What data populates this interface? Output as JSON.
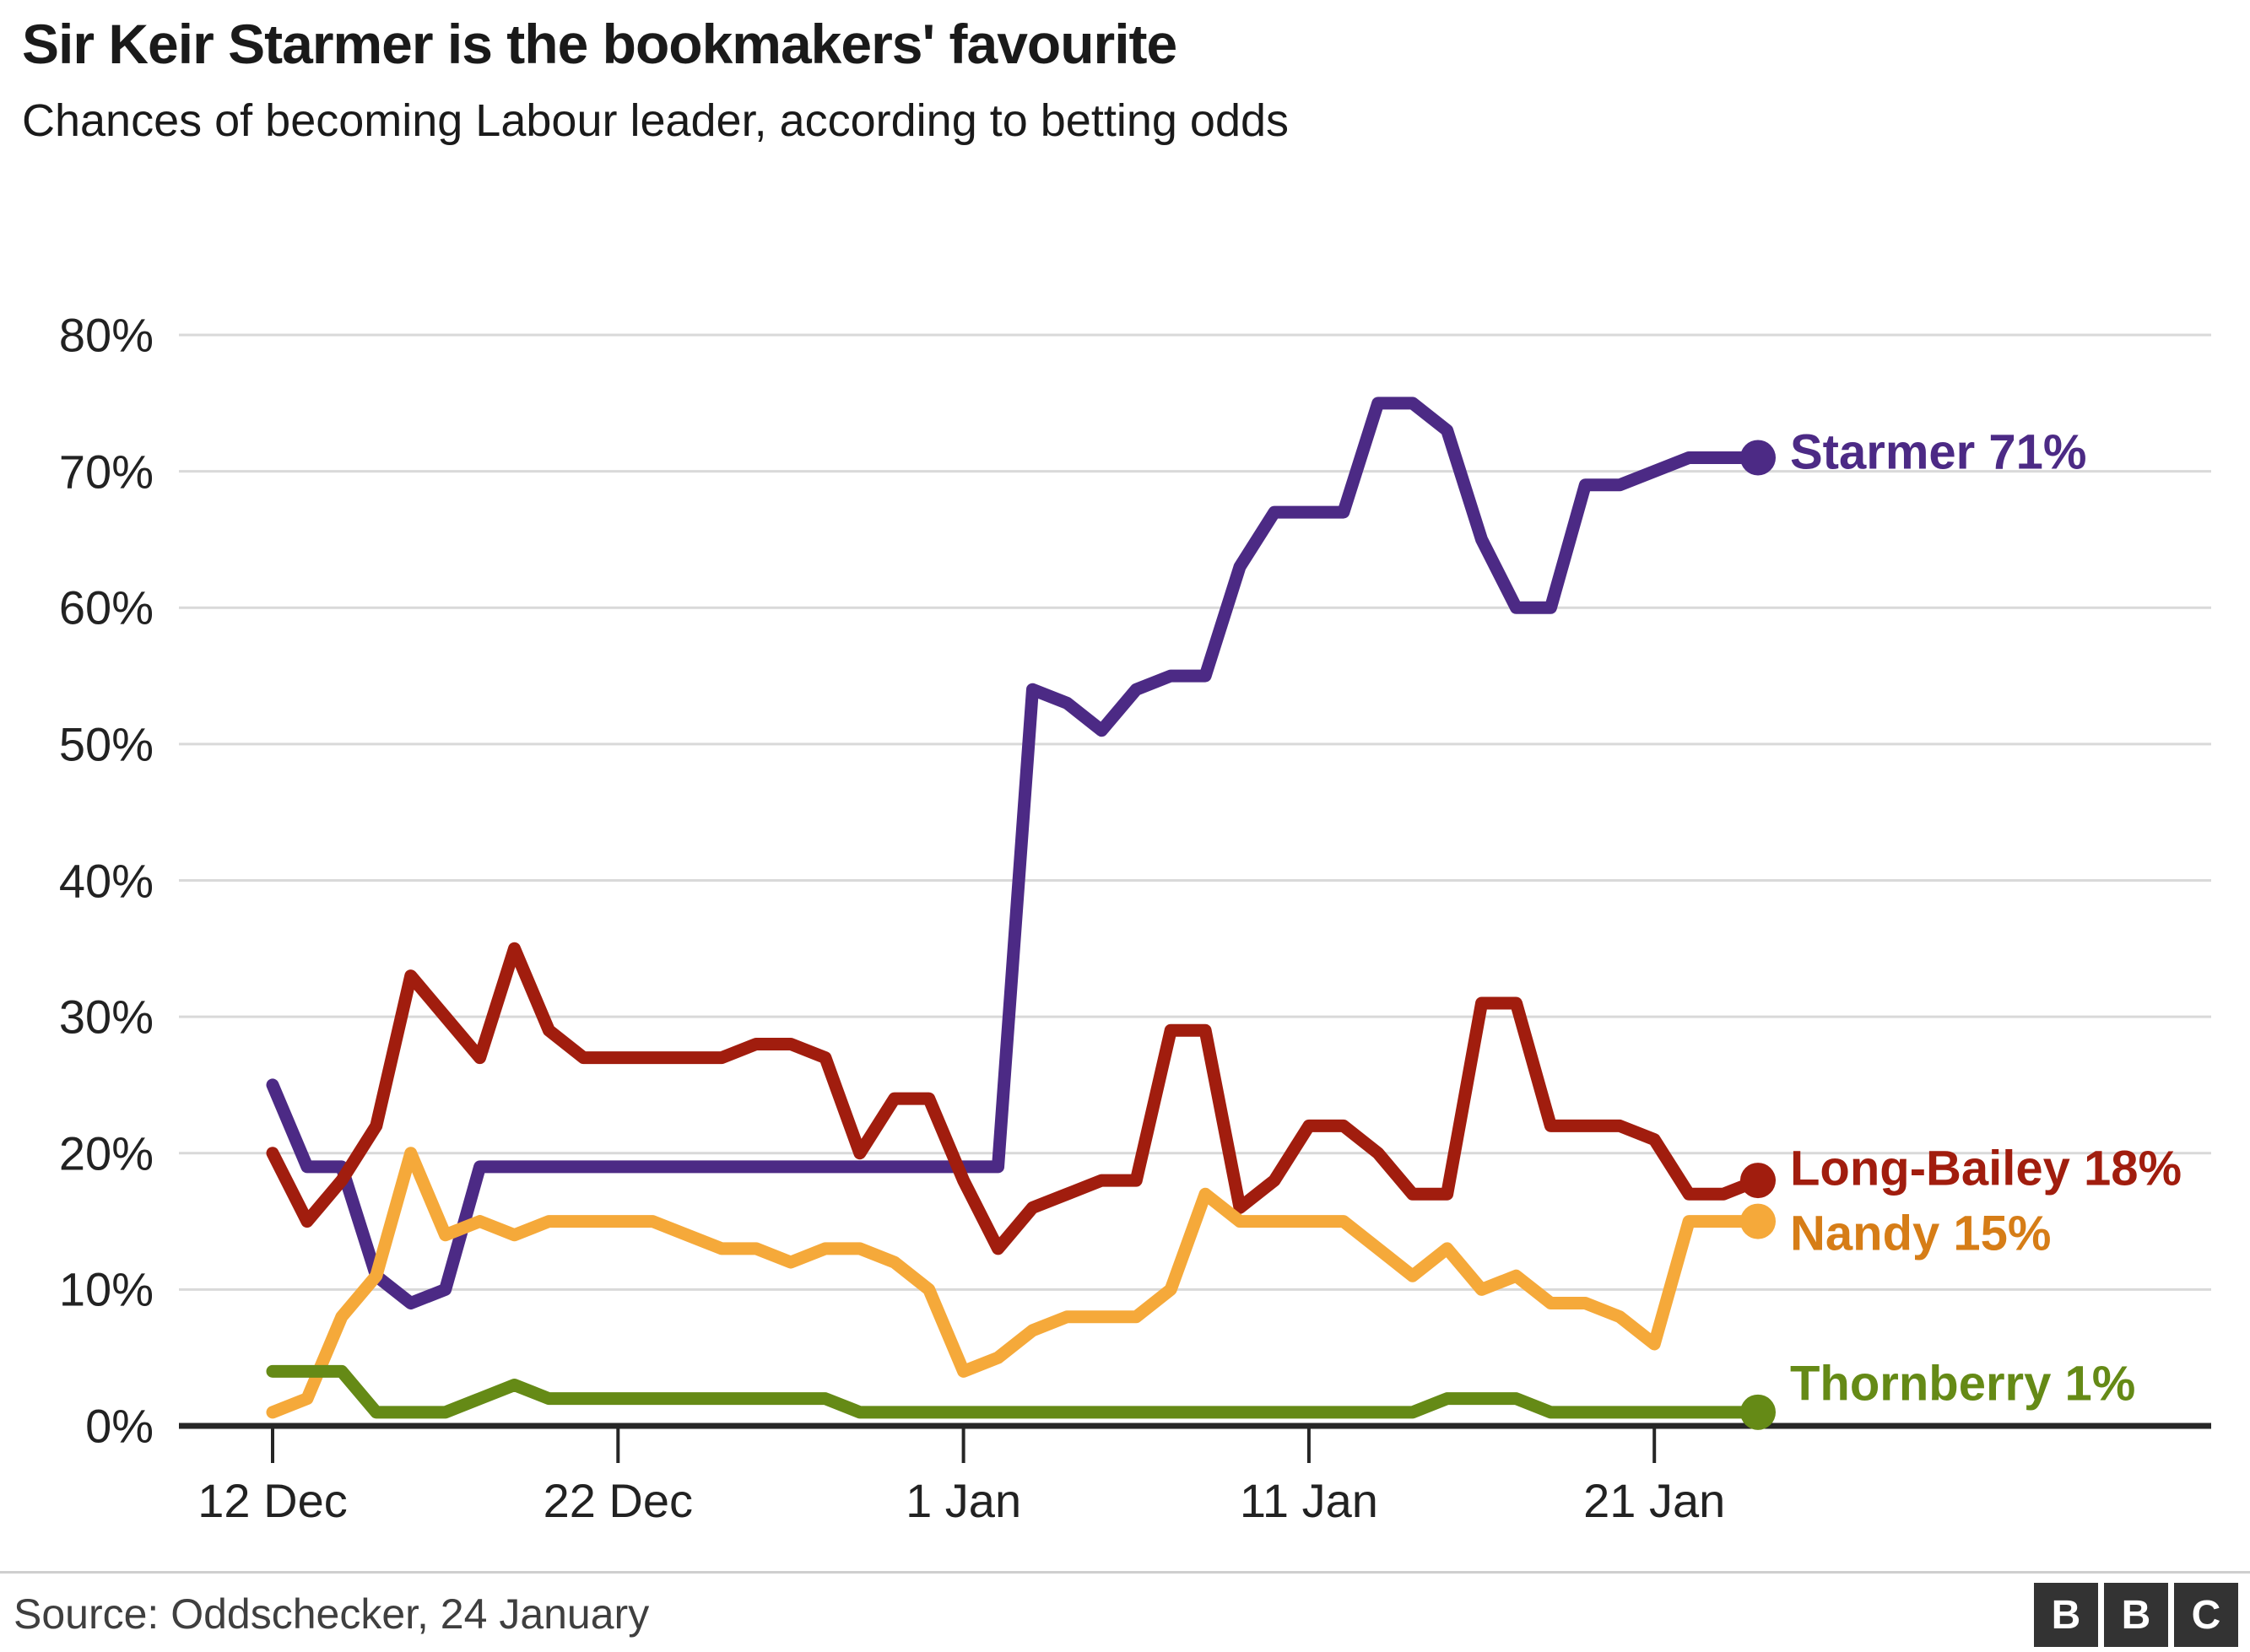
{
  "header": {
    "title": "Sir Keir Starmer is the bookmakers' favourite",
    "subtitle": "Chances of becoming Labour leader, according to betting odds"
  },
  "chart_data": {
    "type": "line",
    "title": "Sir Keir Starmer is the bookmakers' favourite",
    "subtitle": "Chances of becoming Labour leader, according to betting odds",
    "xlabel": "",
    "ylabel": "",
    "ylim": [
      0,
      80
    ],
    "grid": "horizontal",
    "grid_color": "#d9d9d9",
    "axis_color": "#262626",
    "legend_position": "right-end-labels",
    "categories": [
      "12 Dec",
      "13 Dec",
      "14 Dec",
      "15 Dec",
      "16 Dec",
      "17 Dec",
      "18 Dec",
      "19 Dec",
      "20 Dec",
      "21 Dec",
      "22 Dec",
      "23 Dec",
      "24 Dec",
      "25 Dec",
      "26 Dec",
      "27 Dec",
      "28 Dec",
      "29 Dec",
      "30 Dec",
      "31 Dec",
      "1 Jan",
      "2 Jan",
      "3 Jan",
      "4 Jan",
      "5 Jan",
      "6 Jan",
      "7 Jan",
      "8 Jan",
      "9 Jan",
      "10 Jan",
      "11 Jan",
      "12 Jan",
      "13 Jan",
      "14 Jan",
      "15 Jan",
      "16 Jan",
      "17 Jan",
      "18 Jan",
      "19 Jan",
      "20 Jan",
      "21 Jan",
      "22 Jan",
      "23 Jan",
      "24 Jan"
    ],
    "y_ticks": [
      {
        "value": 0,
        "label": "0%"
      },
      {
        "value": 10,
        "label": "10%"
      },
      {
        "value": 20,
        "label": "20%"
      },
      {
        "value": 30,
        "label": "30%"
      },
      {
        "value": 40,
        "label": "40%"
      },
      {
        "value": 50,
        "label": "50%"
      },
      {
        "value": 60,
        "label": "60%"
      },
      {
        "value": 70,
        "label": "70%"
      },
      {
        "value": 80,
        "label": "80%"
      }
    ],
    "x_tick_labels": [
      {
        "index": 0,
        "label": "12 Dec"
      },
      {
        "index": 10,
        "label": "22 Dec"
      },
      {
        "index": 20,
        "label": "1 Jan"
      },
      {
        "index": 30,
        "label": "11 Jan"
      },
      {
        "index": 40,
        "label": "21 Jan"
      }
    ],
    "series": [
      {
        "id": "starmer",
        "name": "Starmer",
        "label": "Starmer 71%",
        "final_value": "71%",
        "color": "#4C2A85",
        "label_color": "#4C2A85",
        "label_value": 71.4,
        "values": [
          25,
          19,
          19,
          11,
          9,
          10,
          19,
          19,
          19,
          19,
          19,
          19,
          19,
          19,
          19,
          19,
          19,
          19,
          19,
          19,
          19,
          19,
          54,
          53,
          51,
          54,
          55,
          55,
          63,
          67,
          67,
          67,
          75,
          75,
          73,
          65,
          60,
          60,
          69,
          69,
          70,
          71,
          71,
          71
        ]
      },
      {
        "id": "long-bailey",
        "name": "Long-Bailey",
        "label": "Long-Bailey 18%",
        "final_value": "18%",
        "color": "#A11D0E",
        "label_color": "#A11D0E",
        "label_value": 18.9,
        "values": [
          20,
          15,
          18,
          22,
          33,
          30,
          27,
          35,
          29,
          27,
          27,
          27,
          27,
          27,
          28,
          28,
          27,
          20,
          24,
          24,
          18,
          13,
          16,
          17,
          18,
          18,
          29,
          29,
          16,
          18,
          22,
          22,
          20,
          17,
          17,
          31,
          31,
          22,
          22,
          22,
          21,
          17,
          17,
          18
        ]
      },
      {
        "id": "nandy",
        "name": "Nandy",
        "label": "Nandy 15%",
        "final_value": "15%",
        "color": "#F5A93A",
        "label_color": "#D67D17",
        "label_value": 14.1,
        "values": [
          1,
          2,
          8,
          11,
          20,
          14,
          15,
          14,
          15,
          15,
          15,
          15,
          14,
          13,
          13,
          12,
          13,
          13,
          12,
          10,
          4,
          5,
          7,
          8,
          8,
          8,
          10,
          17,
          15,
          15,
          15,
          15,
          13,
          11,
          13,
          10,
          11,
          9,
          9,
          8,
          6,
          15,
          15,
          15
        ]
      },
      {
        "id": "thornberry",
        "name": "Thornberry",
        "label": "Thornberry 1%",
        "final_value": "1%",
        "color": "#658A16",
        "label_color": "#658A16",
        "label_value": 3.1,
        "values": [
          4,
          4,
          4,
          1,
          1,
          1,
          2,
          3,
          2,
          2,
          2,
          2,
          2,
          2,
          2,
          2,
          2,
          1,
          1,
          1,
          1,
          1,
          1,
          1,
          1,
          1,
          1,
          1,
          1,
          1,
          1,
          1,
          1,
          1,
          2,
          2,
          2,
          1,
          1,
          1,
          1,
          1,
          1,
          1
        ]
      }
    ]
  },
  "footer": {
    "source": "Source: Oddschecker, 24 January",
    "logo": {
      "letters": [
        "B",
        "B",
        "C"
      ]
    }
  }
}
